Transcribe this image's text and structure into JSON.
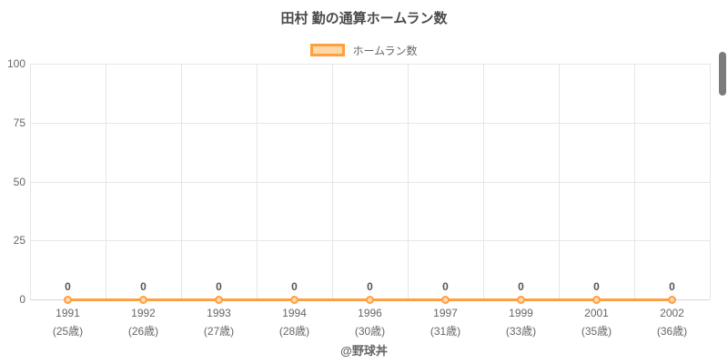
{
  "title": "田村 勤の通算ホームラン数",
  "legend": {
    "label": "ホームラン数"
  },
  "footer": "@野球丼",
  "colors": {
    "accent": "#ff9f40",
    "accent_fill": "#ffd8a8",
    "point_fill": "#ffd9b0",
    "grid": "#e6e6e6",
    "zero_line": "#d6d6d6",
    "text": "#666666",
    "title_text": "#4a4a4a",
    "data_label_text": "#555555",
    "scrollbar": "#7b7b7b"
  },
  "chart_data": {
    "type": "line",
    "title": "田村 勤の通算ホームラン数",
    "categories": [
      "1991",
      "1992",
      "1993",
      "1994",
      "1996",
      "1997",
      "1999",
      "2001",
      "2002"
    ],
    "category_sublabels": [
      "(25歳)",
      "(26歳)",
      "(27歳)",
      "(28歳)",
      "(30歳)",
      "(31歳)",
      "(33歳)",
      "(35歳)",
      "(36歳)"
    ],
    "series": [
      {
        "name": "ホームラン数",
        "values": [
          0,
          0,
          0,
          0,
          0,
          0,
          0,
          0,
          0
        ]
      }
    ],
    "data_labels": [
      "0",
      "0",
      "0",
      "0",
      "0",
      "0",
      "0",
      "0",
      "0"
    ],
    "xlabel": "",
    "ylabel": "",
    "ylim": [
      0,
      100
    ],
    "yticks": [
      0,
      25,
      50,
      75,
      100
    ],
    "grid": true,
    "legend_position": "top"
  }
}
